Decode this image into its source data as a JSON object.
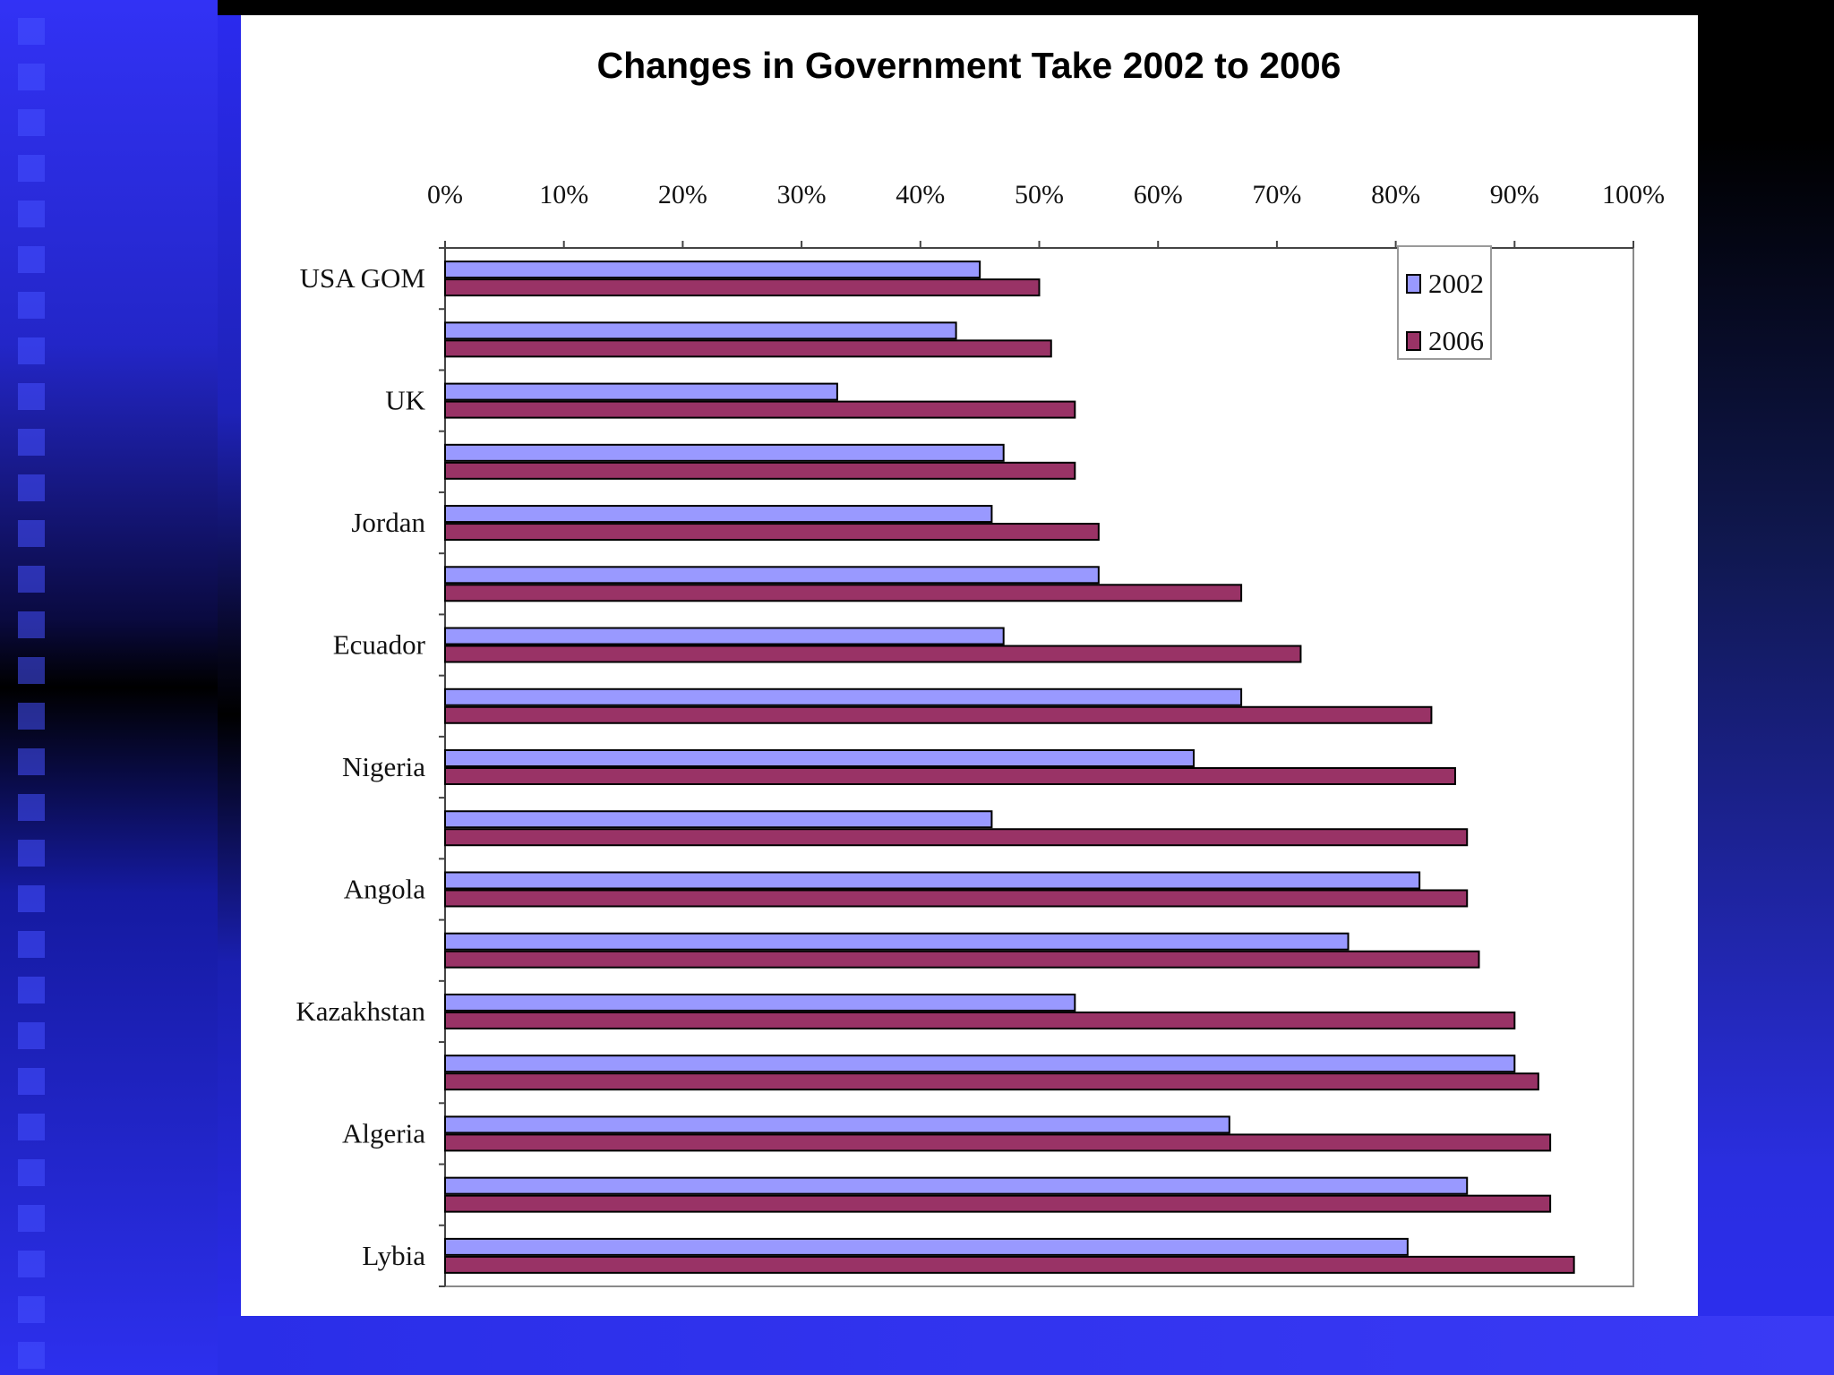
{
  "slide": {
    "colors": {
      "background_blue": "#2d2ef2",
      "background_dark": "#000000",
      "panel": "#ffffff"
    }
  },
  "chart_data": {
    "type": "bar",
    "orientation": "horizontal",
    "title": "Changes in Government Take 2002 to 2006",
    "xlabel": "",
    "ylabel": "",
    "xlim": [
      0,
      100
    ],
    "x_ticks": [
      "0%",
      "10%",
      "20%",
      "30%",
      "40%",
      "50%",
      "60%",
      "70%",
      "80%",
      "90%",
      "100%"
    ],
    "x_axis_position": "top",
    "grid": false,
    "legend": {
      "position": "top-right",
      "entries": [
        "2002",
        "2006"
      ]
    },
    "categories": [
      "USA GOM",
      "",
      "UK",
      "",
      "Jordan",
      "",
      "Ecuador",
      "",
      "Nigeria",
      "",
      "Angola",
      "",
      "Kazakhstan",
      "",
      "Algeria",
      "",
      "Lybia"
    ],
    "series": [
      {
        "name": "2002",
        "color": "#9999ff",
        "values": [
          45,
          43,
          33,
          47,
          46,
          55,
          47,
          67,
          63,
          46,
          82,
          76,
          53,
          90,
          66,
          86,
          81
        ]
      },
      {
        "name": "2006",
        "color": "#993366",
        "values": [
          50,
          51,
          53,
          53,
          55,
          67,
          72,
          83,
          85,
          86,
          86,
          87,
          90,
          92,
          93,
          93,
          95
        ]
      }
    ]
  }
}
